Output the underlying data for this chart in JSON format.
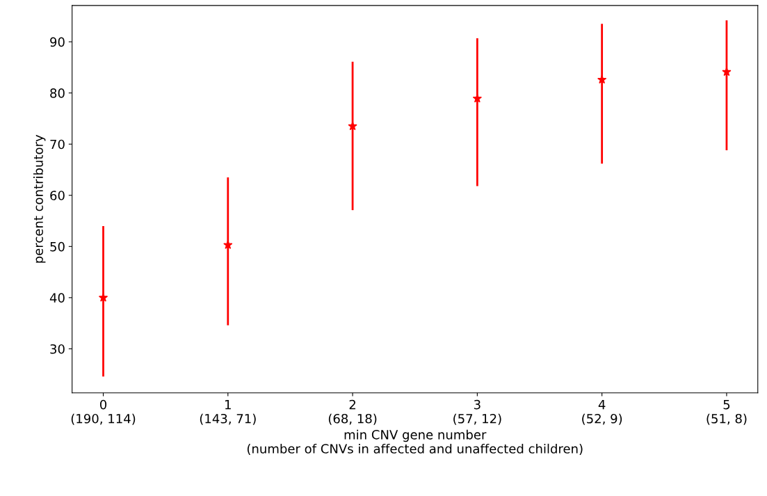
{
  "chart_data": {
    "type": "scatter",
    "xlabel": "min CNV gene number\n(number of CNVs in affected and unaffected children)",
    "ylabel": "percent contributory",
    "categories": [
      "0\n(190, 114)",
      "1\n(143, 71)",
      "2\n(68, 18)",
      "3\n(57, 12)",
      "4\n(52, 9)",
      "5\n(51, 8)"
    ],
    "series": [
      {
        "color": "#ff0000",
        "values": [
          40.0,
          50.3,
          73.5,
          78.9,
          82.6,
          84.1
        ],
        "errors": [
          [
            24.6,
            54.0
          ],
          [
            34.6,
            63.5
          ],
          [
            57.1,
            86.1
          ],
          [
            61.8,
            90.7
          ],
          [
            66.2,
            93.5
          ],
          [
            68.8,
            94.2
          ]
        ]
      }
    ],
    "marker": "star",
    "ylim": [
      21.4,
      97.1
    ],
    "yticks": [
      30,
      40,
      50,
      60,
      70,
      80,
      90
    ],
    "grid": false,
    "legend": false
  }
}
